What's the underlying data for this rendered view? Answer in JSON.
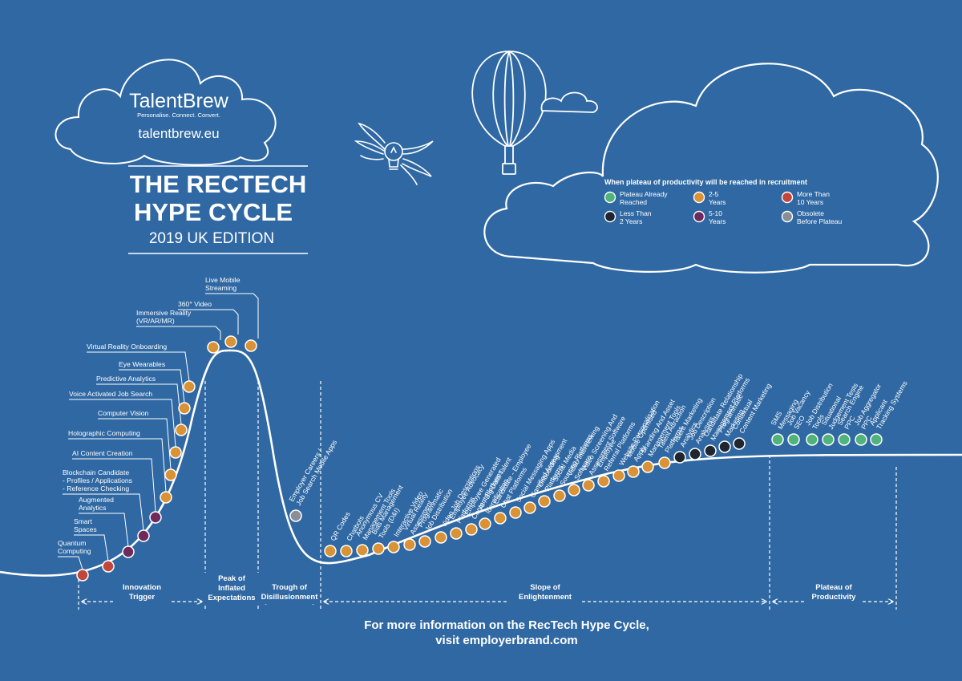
{
  "brand": {
    "name": "TalentBrew",
    "tagline": "Personalise. Connect. Convert.",
    "url": "talentbrew.eu"
  },
  "title": {
    "line1": "THE RECTECH",
    "line2": "HYPE CYCLE",
    "edition": "2019 UK EDITION"
  },
  "legend": {
    "title": "When plateau of productivity will be reached in recruitment",
    "items": [
      {
        "key": "plateau",
        "line1": "Plateau Already",
        "line2": "Reached",
        "color": "#4fb37a"
      },
      {
        "key": "two_five",
        "line1": "2-5",
        "line2": "Years",
        "color": "#d99236"
      },
      {
        "key": "ten_plus",
        "line1": "More Than",
        "line2": "10 Years",
        "color": "#c2463a"
      },
      {
        "key": "lt_two",
        "line1": "Less Than",
        "line2": "2 Years",
        "color": "#1f2630"
      },
      {
        "key": "five_ten",
        "line1": "5-10",
        "line2": "Years",
        "color": "#6e2a5a"
      },
      {
        "key": "obsolete",
        "line1": "Obsolete",
        "line2": "Before Plateau",
        "color": "#8a8f96"
      }
    ]
  },
  "phases": [
    {
      "line1": "Innovation",
      "line2": "Trigger"
    },
    {
      "line1": "Peak of",
      "line2": "Inflated",
      "line3": "Expectations"
    },
    {
      "line1": "Trough of",
      "line2": "Disillusionment"
    },
    {
      "line1": "Slope of",
      "line2": "Enlightenment"
    },
    {
      "line1": "Plateau of",
      "line2": "Productivity"
    }
  ],
  "footer": {
    "line1": "For more information on the RecTech Hype Cycle,",
    "line2": "visit employerbrand.com"
  },
  "technologies": [
    {
      "label": [
        "Quantum",
        "Computing"
      ],
      "status": "ten_plus"
    },
    {
      "label": [
        "Smart",
        "Spaces"
      ],
      "status": "ten_plus"
    },
    {
      "label": [
        "Augmented",
        "Analytics"
      ],
      "status": "five_ten"
    },
    {
      "label": [
        "Blockchain Candidate",
        "- Profiles / Applications",
        "- Reference Checking"
      ],
      "status": "five_ten"
    },
    {
      "label": [
        "AI Content Creation"
      ],
      "status": "five_ten"
    },
    {
      "label": [
        "Holographic Computing"
      ],
      "status": "two_five"
    },
    {
      "label": [
        "Computer Vision"
      ],
      "status": "two_five"
    },
    {
      "label": [
        "Voice Activated Job Search"
      ],
      "status": "two_five"
    },
    {
      "label": [
        "Predictive Analytics"
      ],
      "status": "two_five"
    },
    {
      "label": [
        "Eye Wearables"
      ],
      "status": "two_five"
    },
    {
      "label": [
        "Virtual Reality Onboarding"
      ],
      "status": "two_five"
    },
    {
      "label": [
        "Immersive Reality",
        "(VR/AR/MR)"
      ],
      "status": "two_five"
    },
    {
      "label": [
        "360° Video"
      ],
      "status": "two_five"
    },
    {
      "label": [
        "Live Mobile",
        "Streaming"
      ],
      "status": "two_five"
    },
    {
      "label": [
        "Employer Careers /",
        "Job Search Mobile Apps"
      ],
      "status": "obsolete"
    },
    {
      "label": [
        "QR Codes"
      ],
      "status": "two_five"
    },
    {
      "label": [
        "Chatbots"
      ],
      "status": "two_five"
    },
    {
      "label": [
        "Anonymous CV",
        "Management Tools"
      ],
      "status": "two_five"
    },
    {
      "label": [
        "Bias Management",
        "Tools (D&I)"
      ],
      "status": "two_five"
    },
    {
      "label": [
        "Interactive Video"
      ],
      "status": "two_five"
    },
    {
      "label": [
        "Virtual Reality",
        "Assessment"
      ],
      "status": "two_five"
    },
    {
      "label": [
        "Programmatic",
        "Job Distribution"
      ],
      "status": "two_five"
    },
    {
      "label": [
        "Video Job Descriptions"
      ],
      "status": "two_five"
    },
    {
      "label": [
        "Employee Advocacy",
        "Platforms"
      ],
      "status": "two_five"
    },
    {
      "label": [
        "Employee Generated",
        "Content Platforms"
      ],
      "status": "two_five"
    },
    {
      "label": [
        "AI / Big Data Talent",
        "Identification"
      ],
      "status": "two_five"
    },
    {
      "label": [
        "Candidate - Employee",
        "Chat Platforms"
      ],
      "status": "two_five"
    },
    {
      "label": [
        "Social Messaging Apps"
      ],
      "status": "two_five"
    },
    {
      "label": [
        "Gamified Assessment"
      ],
      "status": "two_five"
    },
    {
      "label": [
        "Onboarding",
        "Platforms"
      ],
      "status": "two_five"
    },
    {
      "label": [
        "Social Media",
        "Sourcing Platforms"
      ],
      "status": "two_five"
    },
    {
      "label": [
        "Video Interviewing",
        "Software"
      ],
      "status": "two_five"
    },
    {
      "label": [
        "Video Screening And",
        "Assessment Software"
      ],
      "status": "two_five"
    },
    {
      "label": [
        "Employee",
        "Referral Platforms"
      ],
      "status": "two_five"
    },
    {
      "label": [
        "Website Personalisation"
      ],
      "status": "two_five"
    },
    {
      "label": [
        "Mobile Optimised",
        "Apply"
      ],
      "status": "two_five"
    },
    {
      "label": [
        "Branding And Asset",
        "Management Tools"
      ],
      "status": "two_five"
    },
    {
      "label": [
        "Talent Attraction",
        "Platforms"
      ],
      "status": "two_five"
    },
    {
      "label": [
        "Talent Marketing",
        "Analytics"
      ],
      "status": "lt_two"
    },
    {
      "label": [
        "Job Description",
        "Analysers"
      ],
      "status": "lt_two"
    },
    {
      "label": [
        "Candidate Relationship",
        "Management Platforms"
      ],
      "status": "lt_two"
    },
    {
      "label": [
        "Programmatic",
        "Marketing"
      ],
      "status": "lt_two"
    },
    {
      "label": [
        "Contextual",
        "Content Marketing"
      ],
      "status": "lt_two"
    },
    {
      "label": [
        "SMS",
        "Messaging"
      ],
      "status": "plateau"
    },
    {
      "label": [
        "Job Vacancy",
        "SEO"
      ],
      "status": "plateau"
    },
    {
      "label": [
        "Job Distribution",
        "Tools"
      ],
      "status": "plateau"
    },
    {
      "label": [
        "Situational",
        "Judgement Tests"
      ],
      "status": "plateau"
    },
    {
      "label": [
        "Search Engine",
        "PPC"
      ],
      "status": "plateau"
    },
    {
      "label": [
        "Job Aggregator",
        "PPC"
      ],
      "status": "plateau"
    },
    {
      "label": [
        "Applicant",
        "Tracking Systems"
      ],
      "status": "plateau"
    }
  ]
}
